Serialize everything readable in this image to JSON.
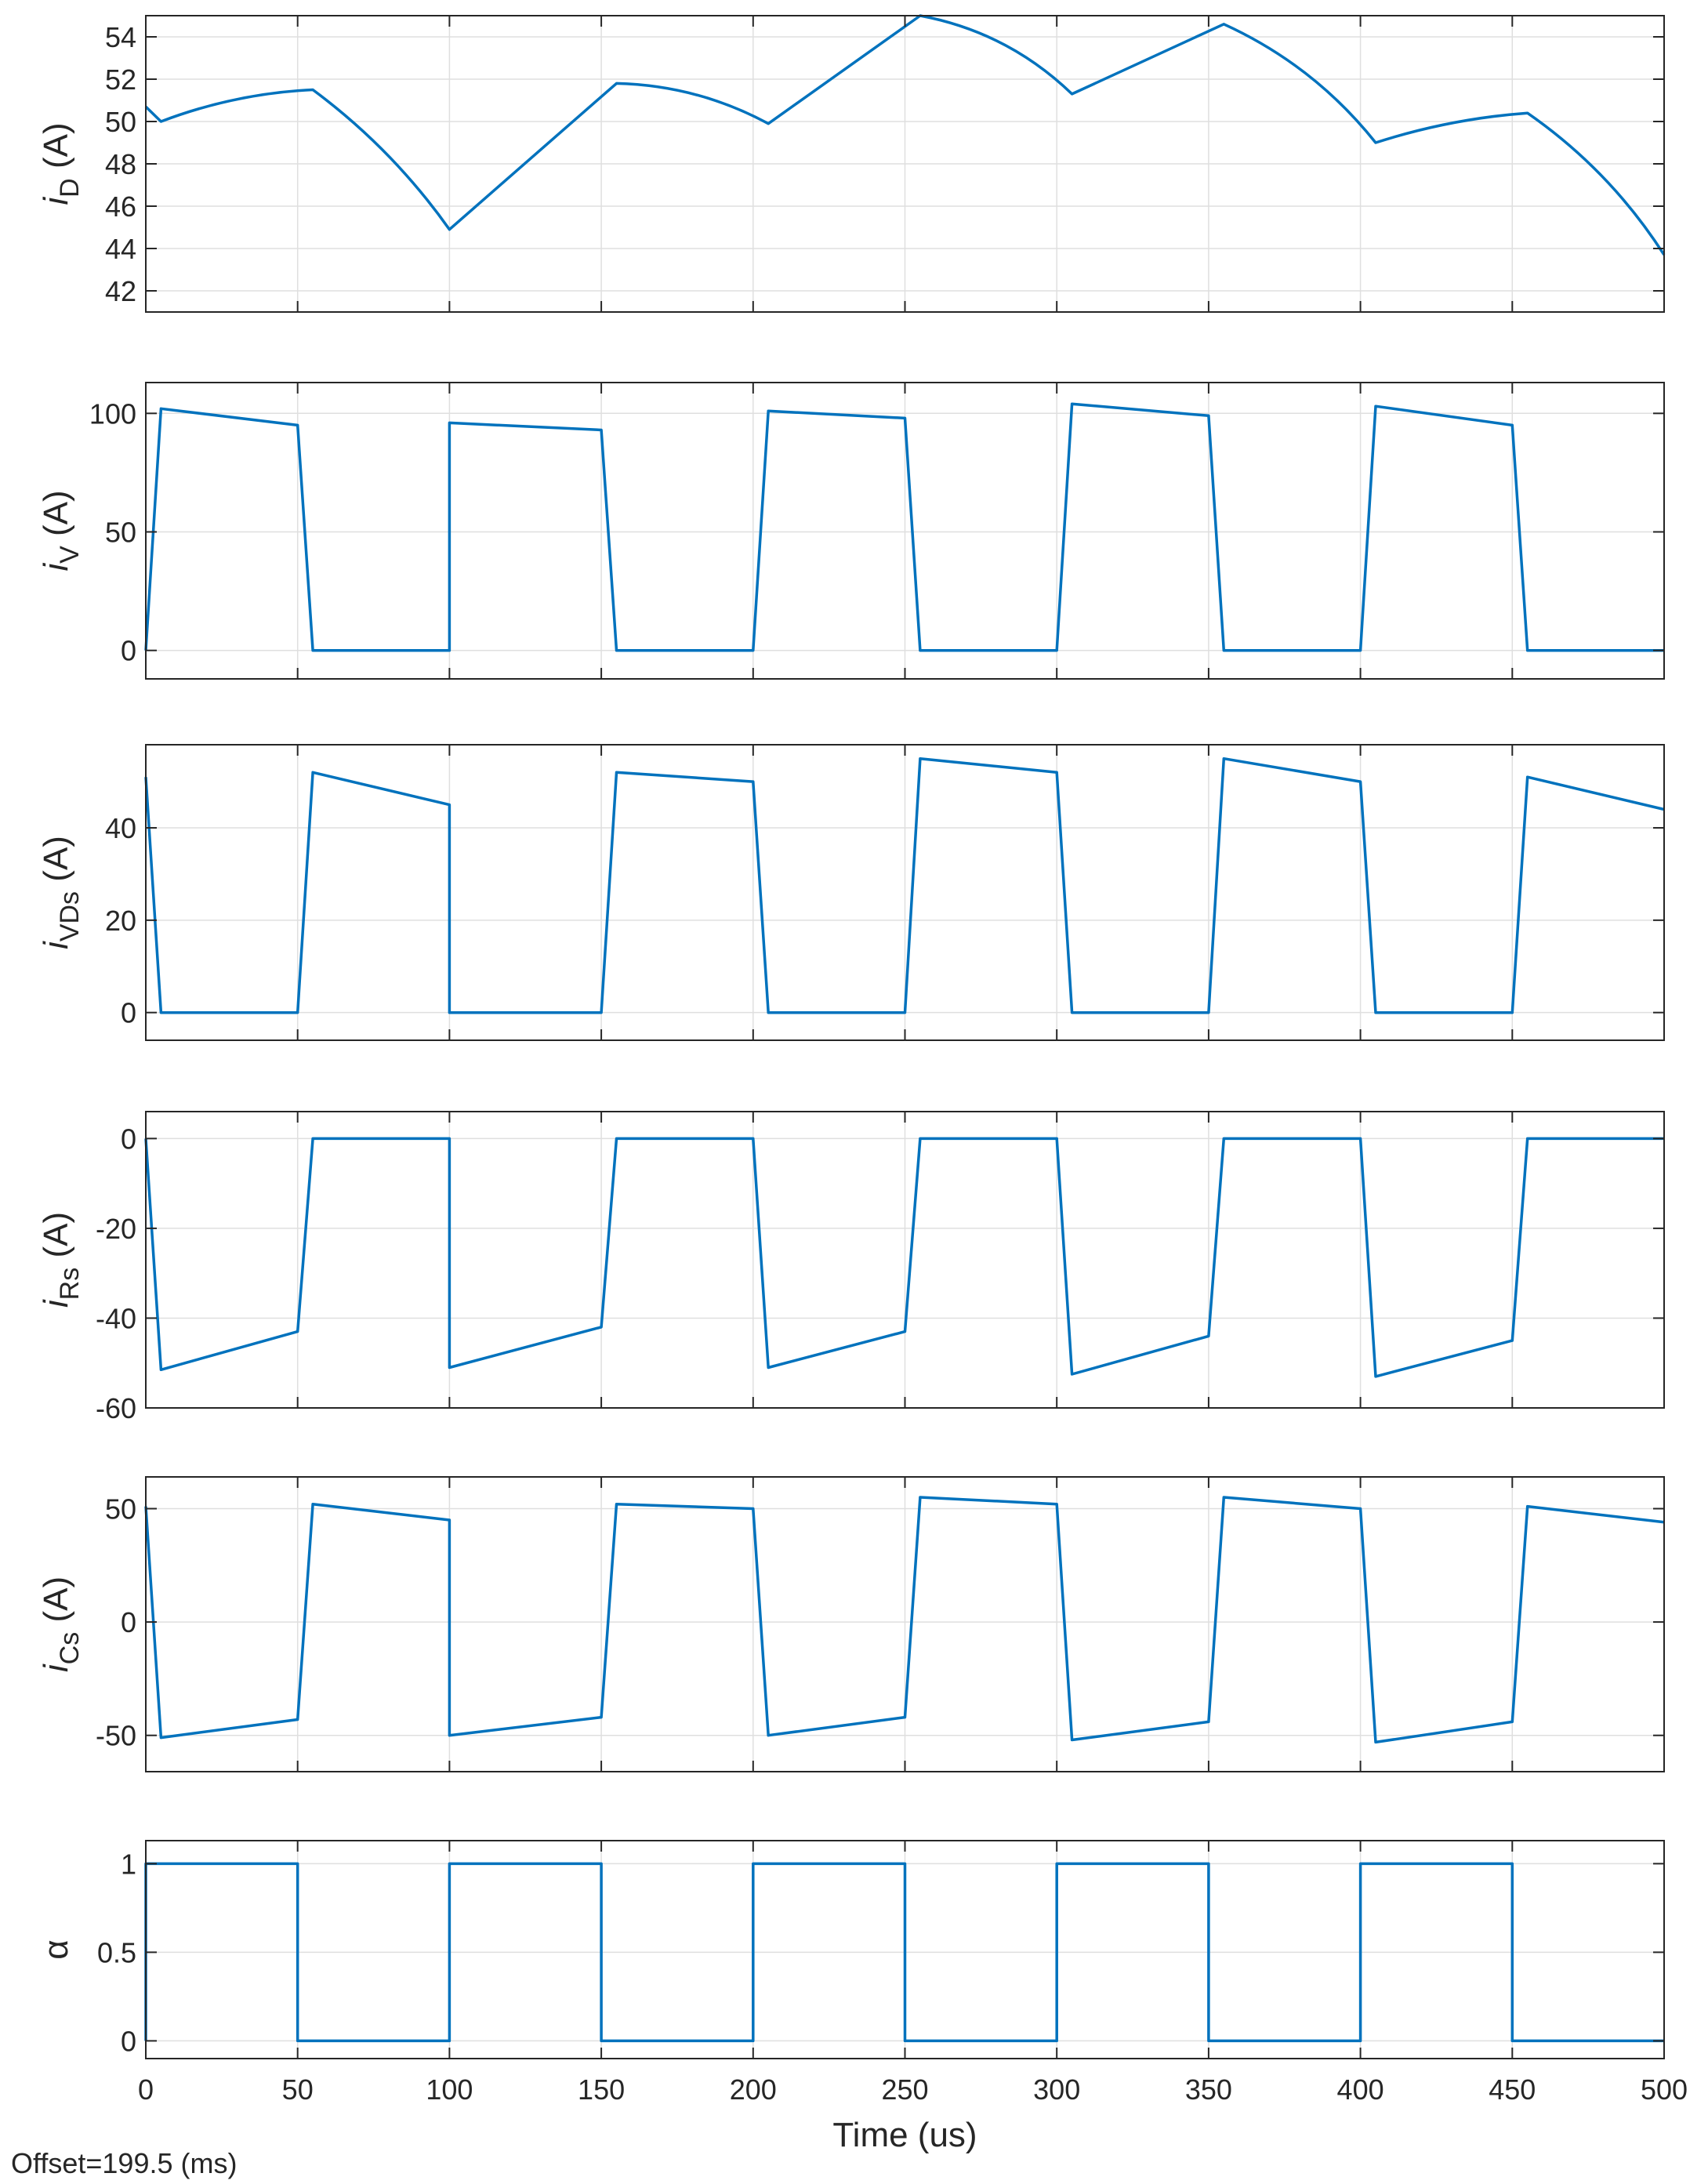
{
  "offset_label": "Offset=199.5 (ms)",
  "chart_data": [
    {
      "type": "line",
      "ylabel": {
        "symbol": "i",
        "subscript": "D",
        "unit": " (A)"
      },
      "ylim": [
        41,
        55
      ],
      "yticks": [
        42,
        44,
        46,
        48,
        50,
        52,
        54
      ],
      "ytick_labels": [
        "42",
        "44",
        "46",
        "48",
        "50",
        "52",
        "54"
      ],
      "xlim": [
        0,
        500
      ],
      "xticks": [
        0,
        50,
        100,
        150,
        200,
        250,
        300,
        350,
        400,
        450,
        500
      ],
      "grid": true,
      "line_color": "#0072BD",
      "x": [
        0,
        5,
        55,
        100,
        155,
        205,
        255,
        305,
        355,
        405,
        455,
        500
      ],
      "y": [
        50.7,
        50.0,
        51.5,
        44.9,
        51.8,
        49.9,
        55.0,
        51.3,
        54.6,
        49.0,
        50.4,
        43.7
      ],
      "curvature": [
        0,
        0.08,
        0.08,
        0,
        0.12,
        0,
        0.15,
        0,
        0.12,
        0.06,
        0.1
      ]
    },
    {
      "type": "line",
      "ylabel": {
        "symbol": "i",
        "subscript": "V",
        "unit": " (A)"
      },
      "ylim": [
        -12,
        113
      ],
      "yticks": [
        0,
        50,
        100
      ],
      "ytick_labels": [
        "0",
        "50",
        "100"
      ],
      "xlim": [
        0,
        500
      ],
      "xticks": [
        0,
        50,
        100,
        150,
        200,
        250,
        300,
        350,
        400,
        450,
        500
      ],
      "grid": true,
      "line_color": "#0072BD",
      "x": [
        0,
        5,
        50,
        55,
        100,
        100,
        150,
        155,
        200,
        205,
        250,
        255,
        300,
        305,
        350,
        355,
        400,
        405,
        450,
        455,
        500
      ],
      "y": [
        0,
        102,
        95,
        0,
        0,
        96,
        93,
        0,
        0,
        101,
        98,
        0,
        0,
        104,
        99,
        0,
        0,
        103,
        95,
        0,
        0
      ]
    },
    {
      "type": "line",
      "ylabel": {
        "symbol": "i",
        "subscript": "VDs",
        "unit": " (A)"
      },
      "ylim": [
        -6,
        58
      ],
      "yticks": [
        0,
        20,
        40
      ],
      "ytick_labels": [
        "0",
        "20",
        "40"
      ],
      "xlim": [
        0,
        500
      ],
      "xticks": [
        0,
        50,
        100,
        150,
        200,
        250,
        300,
        350,
        400,
        450,
        500
      ],
      "grid": true,
      "line_color": "#0072BD",
      "x": [
        0,
        5,
        50,
        55,
        100,
        100,
        150,
        155,
        200,
        205,
        250,
        255,
        300,
        305,
        350,
        355,
        400,
        405,
        450,
        455,
        500
      ],
      "y": [
        51,
        0,
        0,
        52,
        45,
        0,
        0,
        52,
        50,
        0,
        0,
        55,
        52,
        0,
        0,
        55,
        50,
        0,
        0,
        51,
        44
      ]
    },
    {
      "type": "line",
      "ylabel": {
        "symbol": "i",
        "subscript": "Rs",
        "unit": " (A)"
      },
      "ylim": [
        -60,
        6
      ],
      "yticks": [
        -60,
        -40,
        -20,
        0
      ],
      "ytick_labels": [
        "-60",
        "-40",
        "-20",
        "0"
      ],
      "xlim": [
        0,
        500
      ],
      "xticks": [
        0,
        50,
        100,
        150,
        200,
        250,
        300,
        350,
        400,
        450,
        500
      ],
      "grid": true,
      "line_color": "#0072BD",
      "x": [
        0,
        5,
        50,
        55,
        100,
        100,
        150,
        155,
        200,
        205,
        250,
        255,
        300,
        305,
        350,
        355,
        400,
        405,
        450,
        455,
        500
      ],
      "y": [
        0,
        -51.5,
        -43,
        0,
        0,
        -51,
        -42,
        0,
        0,
        -51,
        -43,
        0,
        0,
        -52.5,
        -44,
        0,
        0,
        -53,
        -45,
        0,
        0
      ]
    },
    {
      "type": "line",
      "ylabel": {
        "symbol": "i",
        "subscript": "Cs",
        "unit": " (A)"
      },
      "ylim": [
        -66,
        64
      ],
      "yticks": [
        -50,
        0,
        50
      ],
      "ytick_labels": [
        "-50",
        "0",
        "50"
      ],
      "xlim": [
        0,
        500
      ],
      "xticks": [
        0,
        50,
        100,
        150,
        200,
        250,
        300,
        350,
        400,
        450,
        500
      ],
      "grid": true,
      "line_color": "#0072BD",
      "x": [
        0,
        5,
        50,
        55,
        100,
        100,
        150,
        155,
        200,
        205,
        250,
        255,
        300,
        305,
        350,
        355,
        400,
        405,
        450,
        455,
        500
      ],
      "y": [
        51,
        -51,
        -43,
        52,
        45,
        -50,
        -42,
        52,
        50,
        -50,
        -42,
        55,
        52,
        -52,
        -44,
        55,
        50,
        -53,
        -44,
        51,
        44
      ]
    },
    {
      "type": "line",
      "ylabel": {
        "symbol": "α",
        "subscript": "",
        "unit": ""
      },
      "ylim": [
        -0.1,
        1.13
      ],
      "yticks": [
        0,
        0.5,
        1
      ],
      "ytick_labels": [
        "0",
        "0.5",
        "1"
      ],
      "xlim": [
        0,
        500
      ],
      "xticks": [
        0,
        50,
        100,
        150,
        200,
        250,
        300,
        350,
        400,
        450,
        500
      ],
      "xtick_labels": [
        "0",
        "50",
        "100",
        "150",
        "200",
        "250",
        "300",
        "350",
        "400",
        "450",
        "500"
      ],
      "xlabel": "Time (us)",
      "grid": true,
      "line_color": "#0072BD",
      "x": [
        0,
        0,
        50,
        50,
        100,
        100,
        150,
        150,
        200,
        200,
        250,
        250,
        300,
        300,
        350,
        350,
        400,
        400,
        450,
        450,
        500
      ],
      "y": [
        0,
        1,
        1,
        0,
        0,
        1,
        1,
        0,
        0,
        1,
        1,
        0,
        0,
        1,
        1,
        0,
        0,
        1,
        1,
        0,
        0
      ]
    }
  ]
}
